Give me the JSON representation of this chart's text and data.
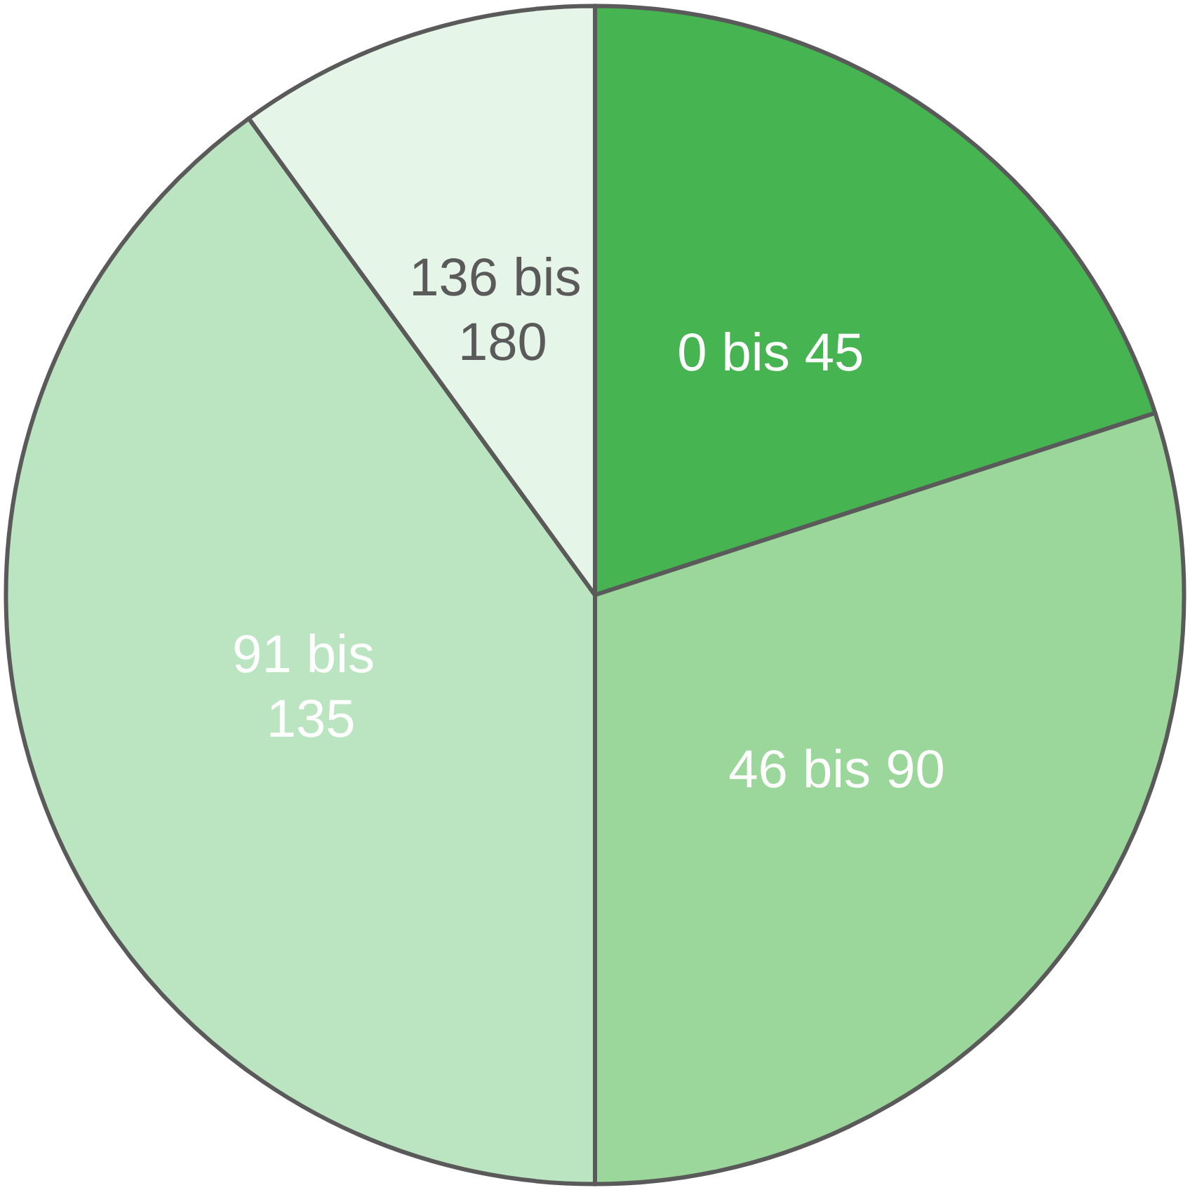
{
  "chart_data": {
    "type": "pie",
    "categories": [
      "0 bis 45",
      "46 bis 90",
      "91 bis 135",
      "136 bis 180"
    ],
    "values": [
      20,
      30,
      40,
      10
    ],
    "colors": [
      "#46b450",
      "#9bd69b",
      "#bbe5c0",
      "#e5f5e8"
    ],
    "legend": false
  }
}
